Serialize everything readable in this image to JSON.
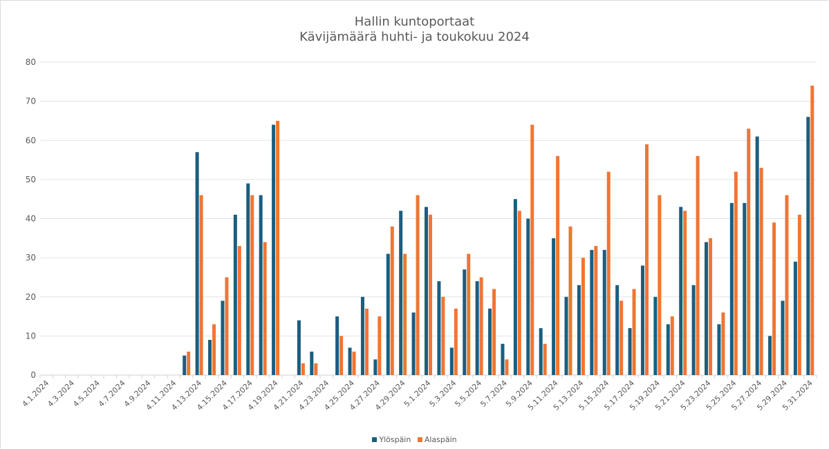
{
  "chart_data": {
    "type": "bar",
    "title": "Hallin kuntoportaat",
    "subtitle": "Kävijämäärä huhti- ja toukokuu 2024",
    "xlabel": "",
    "ylabel": "",
    "ylim": [
      0,
      80
    ],
    "yticks": [
      0,
      10,
      20,
      30,
      40,
      50,
      60,
      70,
      80
    ],
    "grid": true,
    "legend_position": "bottom",
    "categories": [
      "4.1.2024",
      "4.2.2024",
      "4.3.2024",
      "4.4.2024",
      "4.5.2024",
      "4.6.2024",
      "4.7.2024",
      "4.8.2024",
      "4.9.2024",
      "4.10.2024",
      "4.11.2024",
      "4.12.2024",
      "4.13.2024",
      "4.14.2024",
      "4.15.2024",
      "4.16.2024",
      "4.17.2024",
      "4.18.2024",
      "4.19.2024",
      "4.20.2024",
      "4.21.2024",
      "4.22.2024",
      "4.23.2024",
      "4.24.2024",
      "4.25.2024",
      "4.26.2024",
      "4.27.2024",
      "4.28.2024",
      "4.29.2024",
      "4.30.2024",
      "5.1.2024",
      "5.2.2024",
      "5.3.2024",
      "5.4.2024",
      "5.5.2024",
      "5.6.2024",
      "5.7.2024",
      "5.8.2024",
      "5.9.2024",
      "5.10.2024",
      "5.11.2024",
      "5.12.2024",
      "5.13.2024",
      "5.14.2024",
      "5.15.2024",
      "5.16.2024",
      "5.17.2024",
      "5.18.2024",
      "5.19.2024",
      "5.20.2024",
      "5.21.2024",
      "5.22.2024",
      "5.23.2024",
      "5.24.2024",
      "5.25.2024",
      "5.26.2024",
      "5.27.2024",
      "5.28.2024",
      "5.29.2024",
      "5.30.2024",
      "5.31.2024"
    ],
    "tick_label_every": 2,
    "series": [
      {
        "name": "Ylöspäin",
        "color": "#1a5e80",
        "values": [
          0,
          0,
          0,
          0,
          0,
          0,
          0,
          0,
          0,
          0,
          0,
          5,
          57,
          9,
          19,
          41,
          49,
          46,
          64,
          0,
          14,
          6,
          0,
          15,
          7,
          20,
          4,
          31,
          42,
          16,
          43,
          24,
          7,
          27,
          24,
          17,
          8,
          45,
          40,
          12,
          35,
          20,
          23,
          32,
          32,
          23,
          12,
          28,
          20,
          13,
          43,
          23,
          34,
          13,
          44,
          44,
          61,
          10,
          19,
          29,
          66
        ]
      },
      {
        "name": "Alaspäin",
        "color": "#ef7634",
        "values": [
          0,
          0,
          0,
          0,
          0,
          0,
          0,
          0,
          0,
          0,
          0,
          6,
          46,
          13,
          25,
          33,
          46,
          34,
          65,
          0,
          3,
          3,
          0,
          10,
          6,
          17,
          15,
          38,
          31,
          46,
          41,
          20,
          17,
          31,
          25,
          22,
          4,
          42,
          64,
          8,
          56,
          38,
          30,
          33,
          52,
          19,
          22,
          59,
          46,
          15,
          42,
          56,
          35,
          16,
          52,
          63,
          53,
          39,
          46,
          41,
          74
        ]
      }
    ]
  }
}
